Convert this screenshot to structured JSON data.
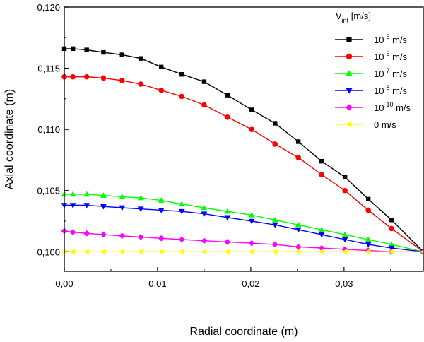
{
  "chart_data": {
    "type": "line",
    "xlabel": "Radial coordinate (m)",
    "ylabel": "Axial coordinate (m)",
    "xlim": [
      0,
      0.0385
    ],
    "ylim": [
      0.0984,
      0.12
    ],
    "xticks": [
      {
        "value": 0.0,
        "label": "0,00"
      },
      {
        "value": 0.01,
        "label": "0,01"
      },
      {
        "value": 0.02,
        "label": "0,02"
      },
      {
        "value": 0.03,
        "label": "0,03"
      }
    ],
    "yticks": [
      {
        "value": 0.1,
        "label": "0,100"
      },
      {
        "value": 0.105,
        "label": "0,105"
      },
      {
        "value": 0.11,
        "label": "0,110"
      },
      {
        "value": 0.115,
        "label": "0,115"
      },
      {
        "value": 0.12,
        "label": "0,120"
      }
    ],
    "grid": false,
    "legend": {
      "placement": "top-right",
      "title_main": "V",
      "title_sub": "int",
      "title_rest": " [m/s]"
    },
    "x": [
      0.0,
      0.00092,
      0.0024,
      0.0042,
      0.0062,
      0.0082,
      0.0104,
      0.0126,
      0.015,
      0.0175,
      0.0201,
      0.0226,
      0.0251,
      0.0276,
      0.0301,
      0.0326,
      0.0351,
      0.0385
    ],
    "series": [
      {
        "name_base": "10",
        "name_exp": "-5",
        "name_unit": " m/s",
        "color": "#000000",
        "marker": "square",
        "values": [
          0.1166,
          0.1166,
          0.1165,
          0.1163,
          0.1161,
          0.1158,
          0.1151,
          0.1145,
          0.1139,
          0.1128,
          0.1116,
          0.1105,
          0.109,
          0.1074,
          0.1061,
          0.1043,
          0.1026,
          0.1
        ]
      },
      {
        "name_base": "10",
        "name_exp": "-6",
        "name_unit": " m/s",
        "color": "#ff0000",
        "marker": "circle",
        "values": [
          0.1143,
          0.1143,
          0.1143,
          0.1142,
          0.114,
          0.1137,
          0.1132,
          0.1127,
          0.112,
          0.111,
          0.11,
          0.1088,
          0.1077,
          0.1063,
          0.105,
          0.1034,
          0.1019,
          0.1
        ]
      },
      {
        "name_base": "10",
        "name_exp": "-7",
        "name_unit": " m/s",
        "color": "#00ff00",
        "marker": "triangle-up",
        "values": [
          0.1047,
          0.1047,
          0.1047,
          0.1046,
          0.1045,
          0.1044,
          0.1042,
          0.1039,
          0.1036,
          0.1033,
          0.103,
          0.1026,
          0.1022,
          0.1018,
          0.1014,
          0.101,
          0.1006,
          0.1
        ]
      },
      {
        "name_base": "10",
        "name_exp": "-8",
        "name_unit": " m/s",
        "color": "#0000ff",
        "marker": "triangle-down",
        "values": [
          0.1038,
          0.1038,
          0.1038,
          0.1037,
          0.1036,
          0.1035,
          0.1034,
          0.1033,
          0.1031,
          0.1028,
          0.1025,
          0.1022,
          0.1018,
          0.1014,
          0.101,
          0.1006,
          0.1003,
          0.1
        ]
      },
      {
        "name_base": "10",
        "name_exp": "-10",
        "name_unit": " m/s",
        "color": "#ff00ff",
        "marker": "diamond",
        "values": [
          0.1017,
          0.1016,
          0.1015,
          0.1014,
          0.1013,
          0.1012,
          0.1011,
          0.101,
          0.1009,
          0.1008,
          0.1007,
          0.1006,
          0.1004,
          0.1003,
          0.1002,
          0.1001,
          0.1,
          0.1
        ]
      },
      {
        "name_base": "",
        "name_exp": "",
        "name_unit": "0 m/s",
        "color": "#ffff00",
        "marker": "triangle-left",
        "values": [
          0.1,
          0.1,
          0.1,
          0.1,
          0.1,
          0.1,
          0.1,
          0.1,
          0.1,
          0.1,
          0.1,
          0.1,
          0.1,
          0.1,
          0.1,
          0.1,
          0.1,
          0.1
        ]
      }
    ]
  }
}
